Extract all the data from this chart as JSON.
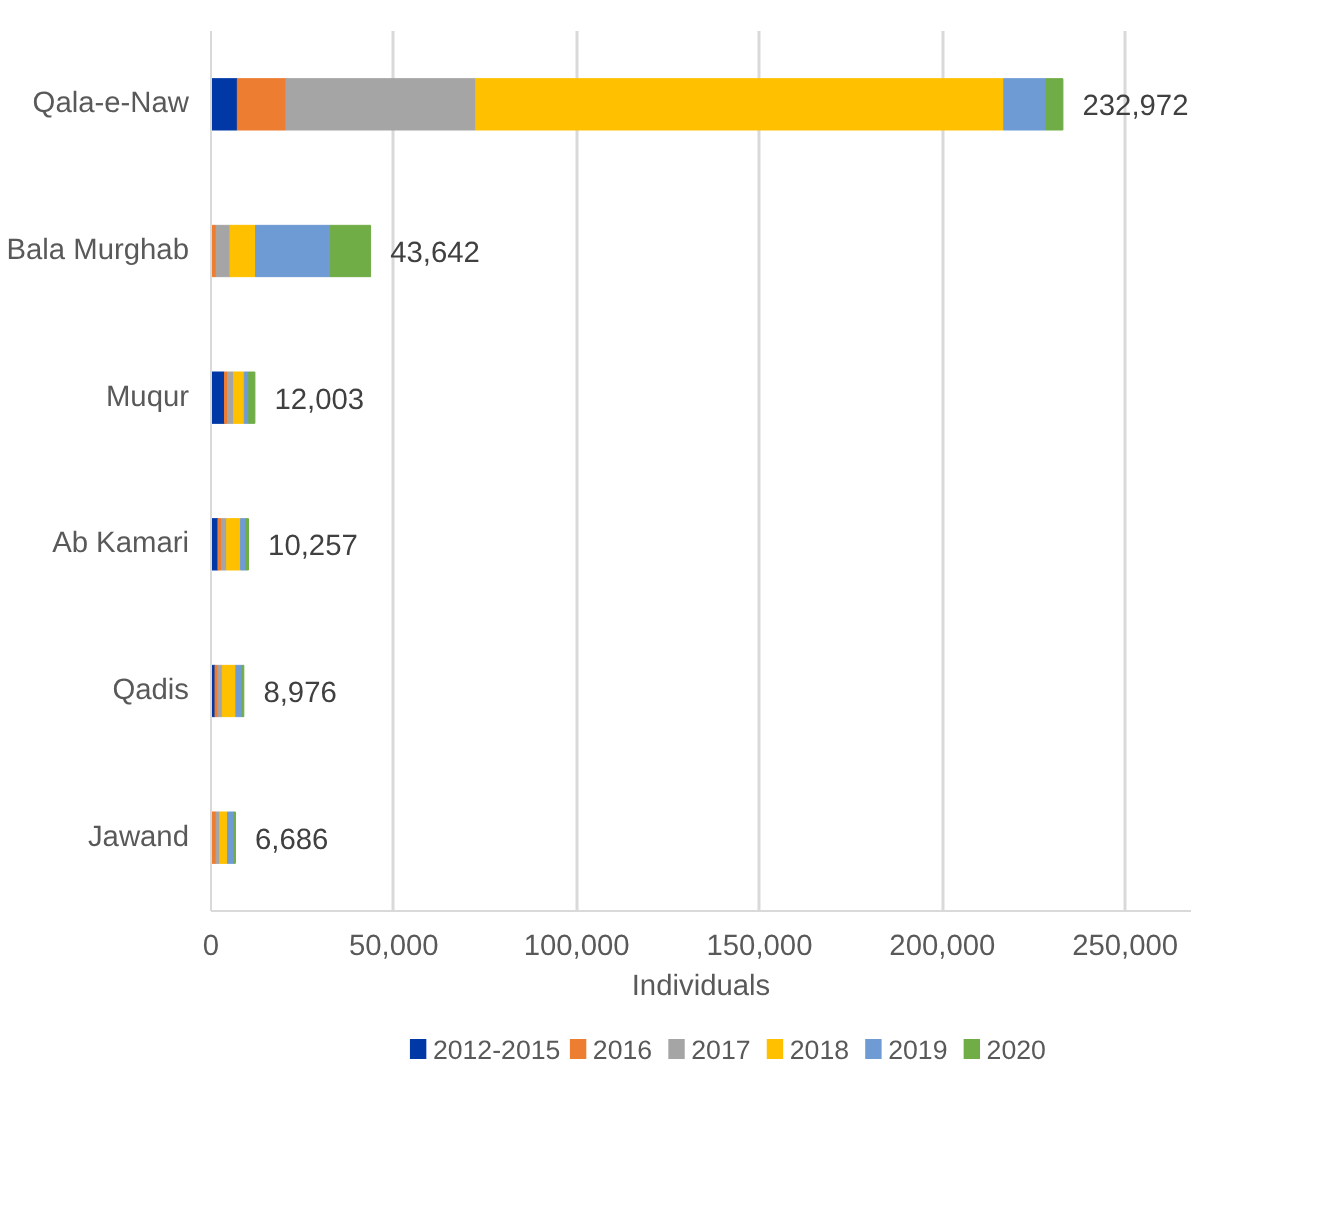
{
  "chart_data": {
    "type": "bar",
    "orientation": "horizontal",
    "stacked": true,
    "xlabel": "Individuals",
    "categories": [
      "Qala-e-Naw",
      "Bala Murghab",
      "Muqur",
      "Ab Kamari",
      "Qadis",
      "Jawand"
    ],
    "series": [
      {
        "name": "2012-2015",
        "color": "#0039a6",
        "values": [
          7200,
          0,
          3700,
          1900,
          1100,
          0
        ]
      },
      {
        "name": "2016",
        "color": "#ed7d31",
        "values": [
          13300,
          1400,
          800,
          1000,
          800,
          1400
        ]
      },
      {
        "name": "2017",
        "color": "#a5a5a5",
        "values": [
          51900,
          3800,
          1700,
          1400,
          1200,
          1000
        ]
      },
      {
        "name": "2018",
        "color": "#ffc000",
        "values": [
          144400,
          7000,
          2900,
          3800,
          3700,
          2100
        ]
      },
      {
        "name": "2019",
        "color": "#6f9bd5",
        "values": [
          11500,
          20500,
          1200,
          1400,
          1800,
          1800
        ]
      },
      {
        "name": "2020",
        "color": "#70ad47",
        "values": [
          4672,
          10942,
          1703,
          757,
          376,
          386
        ]
      }
    ],
    "totals": [
      "232,972",
      "43,642",
      "12,003",
      "10,257",
      "8,976",
      "6,686"
    ],
    "xlim": [
      0,
      268000
    ],
    "xticks": [
      {
        "value": 0,
        "label": "0"
      },
      {
        "value": 50000,
        "label": "50,000"
      },
      {
        "value": 100000,
        "label": "100,000"
      },
      {
        "value": 150000,
        "label": "150,000"
      },
      {
        "value": 200000,
        "label": "200,000"
      },
      {
        "value": 250000,
        "label": "250,000"
      }
    ],
    "grid": "x",
    "legend": "bottom"
  }
}
